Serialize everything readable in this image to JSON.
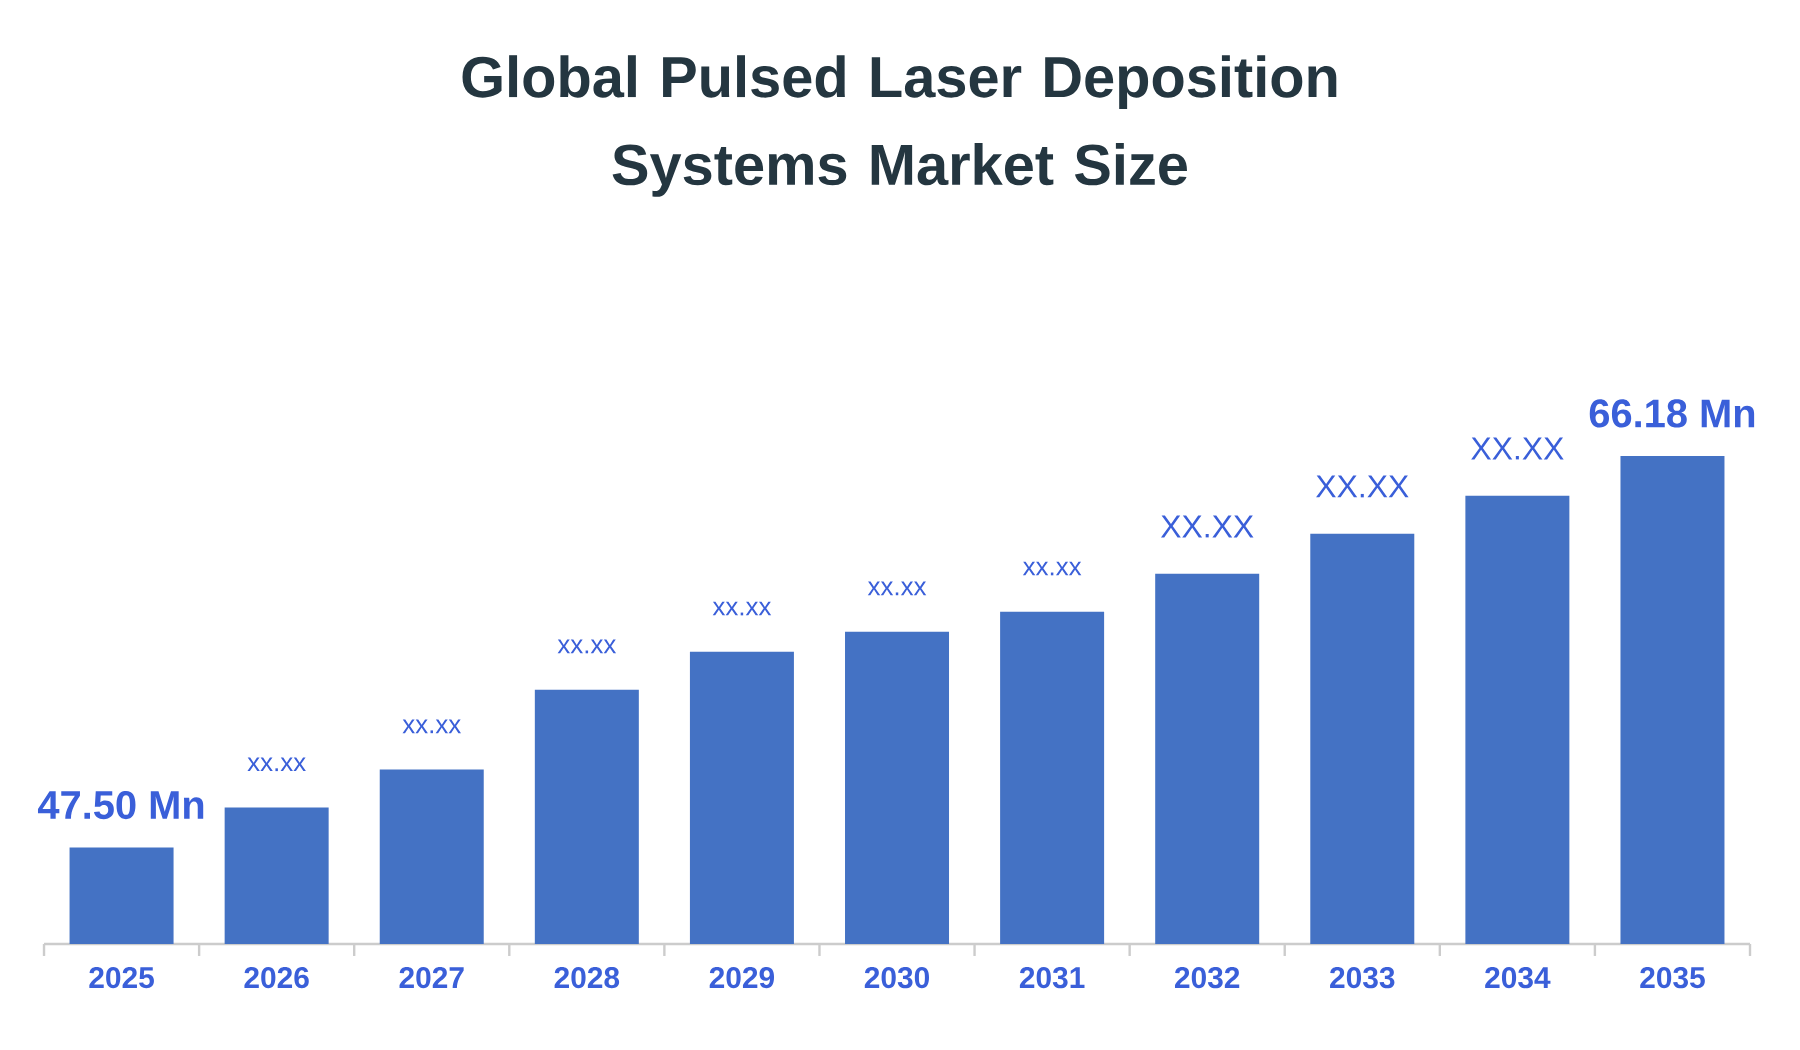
{
  "chart_data": {
    "type": "bar",
    "title": "Global Pulsed Laser Deposition Systems Market Size",
    "categories": [
      "2025",
      "2026",
      "2027",
      "2028",
      "2029",
      "2030",
      "2031",
      "2032",
      "2033",
      "2034",
      "2035"
    ],
    "values": [
      47.5,
      49.41,
      51.22,
      55.03,
      56.84,
      57.8,
      58.75,
      60.56,
      62.47,
      64.28,
      66.18
    ],
    "value_labels": [
      "47.50 Mn",
      "xx.xx",
      "xx.xx",
      "xx.xx",
      "xx.xx",
      "xx.xx",
      "xx.xx",
      "XX.XX",
      "XX.XX",
      "XX.XX",
      "66.18 Mn"
    ],
    "color": "#4472c4",
    "ylim": [
      42.9,
      66.18
    ],
    "tick_labels": "x"
  }
}
